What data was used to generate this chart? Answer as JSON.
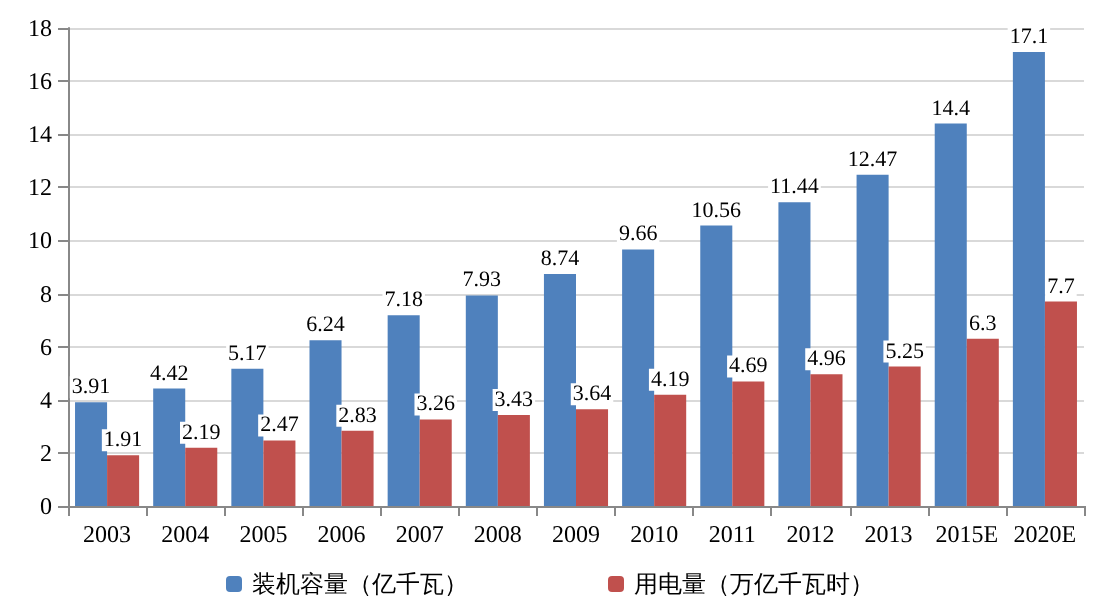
{
  "chart_data": {
    "type": "bar",
    "categories": [
      "2003",
      "2004",
      "2005",
      "2006",
      "2007",
      "2008",
      "2009",
      "2010",
      "2011",
      "2012",
      "2013",
      "2015E",
      "2020E"
    ],
    "series": [
      {
        "name": "装机容量（亿千瓦）",
        "color": "#4f81bd",
        "values": [
          3.91,
          4.42,
          5.17,
          6.24,
          7.18,
          7.93,
          8.74,
          9.66,
          10.56,
          11.44,
          12.47,
          14.4,
          17.1
        ]
      },
      {
        "name": "用电量（万亿千瓦时）",
        "color": "#c0504d",
        "values": [
          1.91,
          2.19,
          2.47,
          2.83,
          3.26,
          3.43,
          3.64,
          4.19,
          4.69,
          4.96,
          5.25,
          6.3,
          7.7
        ]
      }
    ],
    "ylim": [
      0,
      18
    ],
    "yticks": [
      0,
      2,
      4,
      6,
      8,
      10,
      12,
      14,
      16,
      18
    ],
    "grid": "y",
    "legend": "bottom",
    "data_labels": true
  }
}
